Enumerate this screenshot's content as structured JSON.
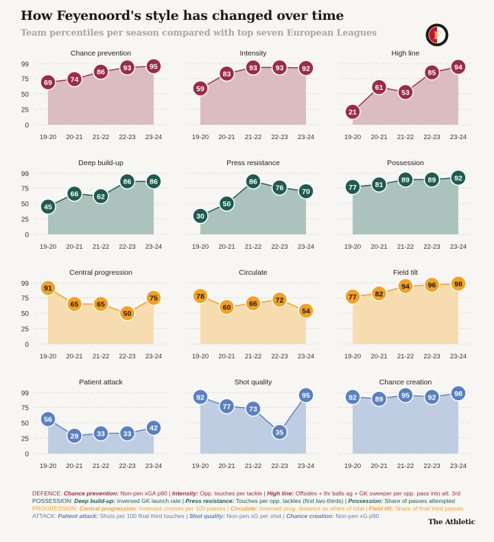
{
  "header": {
    "title": "How Feyenoord's style has changed over time",
    "subtitle": "Team percentiles per season compared with top seven European Leagues",
    "logo_text": "FEYENOORD ROTTERDAM"
  },
  "colors": {
    "defence": {
      "line": "#9b2c45",
      "fill": "#dbbcc1"
    },
    "possession": {
      "line": "#1f5b52",
      "fill": "#abc3bc"
    },
    "progression": {
      "line": "#f3a125",
      "fill": "#f6dcae"
    },
    "attack": {
      "line": "#5a80c0",
      "fill": "#bfcde3"
    }
  },
  "chart_data": [
    {
      "type": "area",
      "group": "defence",
      "title": "Chance prevention",
      "categories": [
        "19-20",
        "20-21",
        "21-22",
        "22-23",
        "23-24"
      ],
      "values": [
        69,
        74,
        86,
        93,
        95
      ],
      "yticks": [
        99,
        75,
        50,
        25,
        0
      ],
      "ylim": [
        0,
        99
      ]
    },
    {
      "type": "area",
      "group": "defence",
      "title": "Intensity",
      "categories": [
        "19-20",
        "20-21",
        "21-22",
        "22-23",
        "23-24"
      ],
      "values": [
        59,
        83,
        93,
        93,
        92
      ],
      "yticks": [
        99,
        75,
        50,
        25,
        0
      ],
      "ylim": [
        0,
        99
      ]
    },
    {
      "type": "area",
      "group": "defence",
      "title": "High line",
      "categories": [
        "19-20",
        "20-21",
        "21-22",
        "22-23",
        "23-24"
      ],
      "values": [
        21,
        61,
        53,
        85,
        94
      ],
      "yticks": [
        99,
        75,
        50,
        25,
        0
      ],
      "ylim": [
        0,
        99
      ]
    },
    {
      "type": "area",
      "group": "possession",
      "title": "Deep build-up",
      "categories": [
        "19-20",
        "20-21",
        "21-22",
        "22-23",
        "23-24"
      ],
      "values": [
        45,
        66,
        62,
        86,
        86
      ],
      "yticks": [
        99,
        75,
        50,
        25,
        0
      ],
      "ylim": [
        0,
        99
      ]
    },
    {
      "type": "area",
      "group": "possession",
      "title": "Press resistance",
      "categories": [
        "19-20",
        "20-21",
        "21-22",
        "22-23",
        "23-24"
      ],
      "values": [
        30,
        50,
        86,
        76,
        70
      ],
      "yticks": [
        99,
        75,
        50,
        25,
        0
      ],
      "ylim": [
        0,
        99
      ]
    },
    {
      "type": "area",
      "group": "possession",
      "title": "Possession",
      "categories": [
        "19-20",
        "20-21",
        "21-22",
        "22-23",
        "23-24"
      ],
      "values": [
        77,
        81,
        89,
        89,
        92
      ],
      "yticks": [
        99,
        75,
        50,
        25,
        0
      ],
      "ylim": [
        0,
        99
      ]
    },
    {
      "type": "area",
      "group": "progression",
      "title": "Central progression",
      "categories": [
        "19-20",
        "20-21",
        "21-22",
        "22-23",
        "23-24"
      ],
      "values": [
        91,
        65,
        65,
        50,
        75
      ],
      "yticks": [
        99,
        75,
        50,
        25,
        0
      ],
      "ylim": [
        0,
        99
      ]
    },
    {
      "type": "area",
      "group": "progression",
      "title": "Circulate",
      "categories": [
        "19-20",
        "20-21",
        "21-22",
        "22-23",
        "23-24"
      ],
      "values": [
        78,
        60,
        66,
        72,
        54
      ],
      "yticks": [
        99,
        75,
        50,
        25,
        0
      ],
      "ylim": [
        0,
        99
      ]
    },
    {
      "type": "area",
      "group": "progression",
      "title": "Field tilt",
      "categories": [
        "19-20",
        "20-21",
        "21-22",
        "22-23",
        "23-24"
      ],
      "values": [
        77,
        82,
        94,
        96,
        98
      ],
      "yticks": [
        99,
        75,
        50,
        25,
        0
      ],
      "ylim": [
        0,
        99
      ]
    },
    {
      "type": "area",
      "group": "attack",
      "title": "Patient attack",
      "categories": [
        "19-20",
        "20-21",
        "21-22",
        "22-23",
        "23-24"
      ],
      "values": [
        56,
        29,
        33,
        33,
        42
      ],
      "yticks": [
        99,
        75,
        50,
        25,
        0
      ],
      "ylim": [
        0,
        99
      ]
    },
    {
      "type": "area",
      "group": "attack",
      "title": "Shot quality",
      "categories": [
        "19-20",
        "20-21",
        "21-22",
        "22-23",
        "23-24"
      ],
      "values": [
        92,
        77,
        73,
        35,
        95
      ],
      "yticks": [
        99,
        75,
        50,
        25,
        0
      ],
      "ylim": [
        0,
        99
      ]
    },
    {
      "type": "area",
      "group": "attack",
      "title": "Chance creation",
      "categories": [
        "19-20",
        "20-21",
        "21-22",
        "22-23",
        "23-24"
      ],
      "values": [
        92,
        89,
        95,
        92,
        98
      ],
      "yticks": [
        99,
        75,
        50,
        25,
        0
      ],
      "ylim": [
        0,
        99
      ]
    }
  ],
  "footnotes": [
    {
      "group": "defence",
      "prefix": "DEFENCE: ",
      "items": [
        {
          "label": "Chance prevention:",
          "desc": " Non-pen xGA p90"
        },
        {
          "label": "Intensity:",
          "desc": " Opp. touches per tackle"
        },
        {
          "label": "High line:",
          "desc": " Offsides + thr balls ag + GK sweeper per opp. pass into att. 3rd"
        }
      ]
    },
    {
      "group": "possession",
      "prefix": "POSSESSION: ",
      "items": [
        {
          "label": "Deep build-up:",
          "desc": " Inversed GK launch rate"
        },
        {
          "label": "Press resistance:",
          "desc": " Touches per opp. tackles (first two-thirds)"
        },
        {
          "label": "Possession:",
          "desc": " Share of passes attempted"
        }
      ]
    },
    {
      "group": "progression",
      "prefix": "PROGRESSION: ",
      "items": [
        {
          "label": "Central progression:",
          "desc": " Inversed crosses per 100 passes"
        },
        {
          "label": "Circulate:",
          "desc": " Inversed prog. distance as share of total"
        },
        {
          "label": "Field tilt:",
          "desc": " Share of final third passes"
        }
      ]
    },
    {
      "group": "attack",
      "prefix": "ATTACK: ",
      "items": [
        {
          "label": "Patient attack:",
          "desc": " Shots per 100 final third touches"
        },
        {
          "label": "Shot quality:",
          "desc": " Non-pen xG per shot"
        },
        {
          "label": "Chance creation:",
          "desc": " Non-pen xG p90"
        }
      ]
    }
  ],
  "brand": "The Athletic"
}
